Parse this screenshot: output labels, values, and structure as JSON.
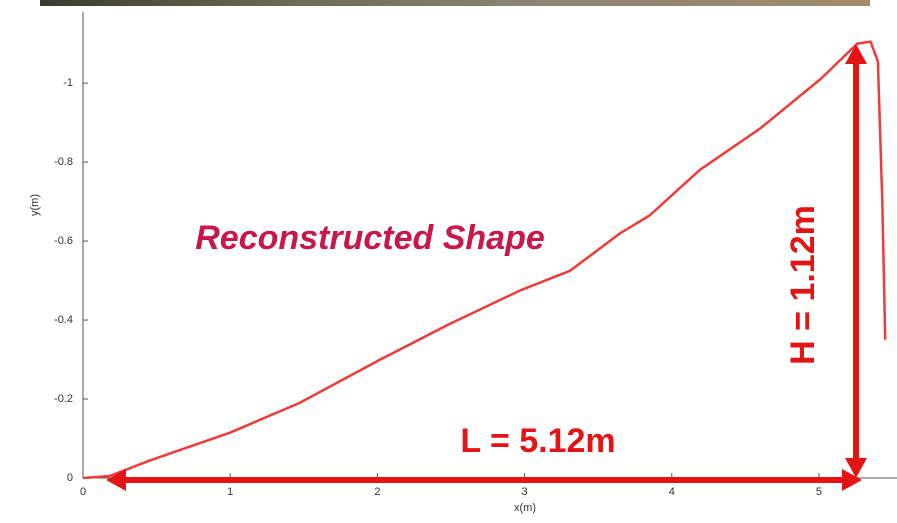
{
  "chart_data": {
    "type": "line",
    "x_label": "x(m)",
    "y_label": "y(m)",
    "annotations": [
      "Reconstructed Shape",
      "L = 5.12m",
      "H = 1.12m"
    ],
    "x": [
      0,
      0.18,
      0.46,
      1.0,
      1.47,
      2.02,
      2.49,
      2.97,
      3.31,
      3.65,
      3.85,
      4.19,
      4.6,
      5.01,
      5.26,
      5.35,
      5.4,
      5.43,
      5.45
    ],
    "series": [
      {
        "color": "#ee3b3b",
        "values": [
          0,
          -0.005,
          -0.045,
          -0.115,
          -0.19,
          -0.3,
          -0.39,
          -0.475,
          -0.525,
          -0.62,
          -0.665,
          -0.78,
          -0.885,
          -1.01,
          -1.1,
          -1.105,
          -1.055,
          -0.7,
          -0.35
        ]
      }
    ],
    "xlim": [
      0,
      5.53
    ],
    "ylim": [
      0,
      -1.18
    ],
    "xticks": [
      0,
      1,
      2,
      3,
      4,
      5
    ],
    "yticks": [
      0,
      -0.2,
      -0.4,
      -0.6,
      -0.8,
      -1
    ]
  }
}
